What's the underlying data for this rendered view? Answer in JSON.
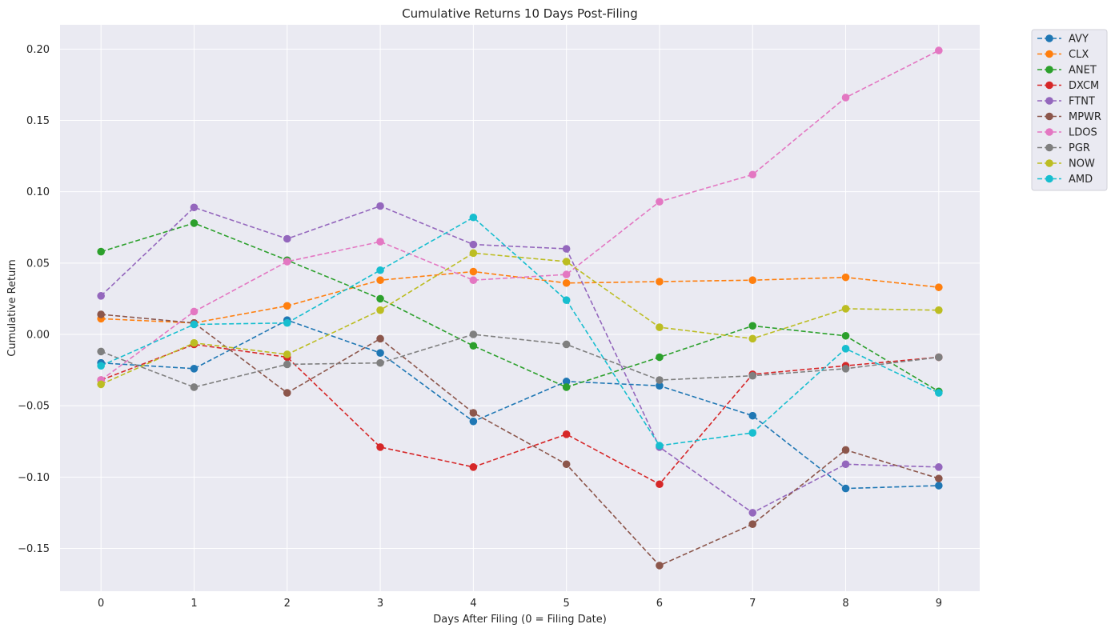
{
  "chart_data": {
    "type": "line",
    "title": "Cumulative Returns 10 Days Post-Filing",
    "xlabel": "Days After Filing (0 = Filing Date)",
    "ylabel": "Cumulative Return",
    "x": [
      0,
      1,
      2,
      3,
      4,
      5,
      6,
      7,
      8,
      9
    ],
    "xlim": [
      -0.44,
      9.44
    ],
    "ylim": [
      -0.18,
      0.217
    ],
    "xticks": [
      0,
      1,
      2,
      3,
      4,
      5,
      6,
      7,
      8,
      9
    ],
    "xtick_labels": [
      "0",
      "1",
      "2",
      "3",
      "4",
      "5",
      "6",
      "7",
      "8",
      "9"
    ],
    "yticks": [
      -0.15,
      -0.1,
      -0.05,
      0.0,
      0.05,
      0.1,
      0.15,
      0.2
    ],
    "ytick_labels": [
      "−0.15",
      "−0.10",
      "−0.05",
      "0.00",
      "0.05",
      "0.10",
      "0.15",
      "0.20"
    ],
    "grid": true,
    "legend_position": "outside top-right",
    "line_style": "dashed with circle markers",
    "series": [
      {
        "name": "AVY",
        "color": "#1f77b4",
        "values": [
          -0.02,
          -0.024,
          0.01,
          -0.013,
          -0.061,
          -0.033,
          -0.036,
          -0.057,
          -0.108,
          -0.106
        ]
      },
      {
        "name": "CLX",
        "color": "#ff7f0e",
        "values": [
          0.011,
          0.008,
          0.02,
          0.038,
          0.044,
          0.036,
          0.037,
          0.038,
          0.04,
          0.033
        ]
      },
      {
        "name": "ANET",
        "color": "#2ca02c",
        "values": [
          0.058,
          0.078,
          0.052,
          0.025,
          -0.008,
          -0.037,
          -0.016,
          0.006,
          -0.001,
          -0.04
        ]
      },
      {
        "name": "DXCM",
        "color": "#d62728",
        "values": [
          -0.032,
          -0.007,
          -0.016,
          -0.079,
          -0.093,
          -0.07,
          -0.105,
          -0.028,
          -0.022,
          -0.016
        ]
      },
      {
        "name": "FTNT",
        "color": "#9467bd",
        "values": [
          0.027,
          0.089,
          0.067,
          0.09,
          0.063,
          0.06,
          -0.079,
          -0.125,
          -0.091,
          -0.093
        ]
      },
      {
        "name": "MPWR",
        "color": "#8c564b",
        "values": [
          0.014,
          0.008,
          -0.041,
          -0.003,
          -0.055,
          -0.091,
          -0.162,
          -0.133,
          -0.081,
          -0.101
        ]
      },
      {
        "name": "LDOS",
        "color": "#e377c2",
        "values": [
          -0.032,
          0.016,
          0.051,
          0.065,
          0.038,
          0.042,
          0.093,
          0.112,
          0.166,
          0.199
        ]
      },
      {
        "name": "PGR",
        "color": "#7f7f7f",
        "values": [
          -0.012,
          -0.037,
          -0.021,
          -0.02,
          0.0,
          -0.007,
          -0.032,
          -0.029,
          -0.024,
          -0.016
        ]
      },
      {
        "name": "NOW",
        "color": "#bcbd22",
        "values": [
          -0.035,
          -0.006,
          -0.014,
          0.017,
          0.057,
          0.051,
          0.005,
          -0.003,
          0.018,
          0.017
        ]
      },
      {
        "name": "AMD",
        "color": "#17becf",
        "values": [
          -0.022,
          0.007,
          0.008,
          0.045,
          0.082,
          0.024,
          -0.078,
          -0.069,
          -0.01,
          -0.041
        ]
      }
    ]
  }
}
